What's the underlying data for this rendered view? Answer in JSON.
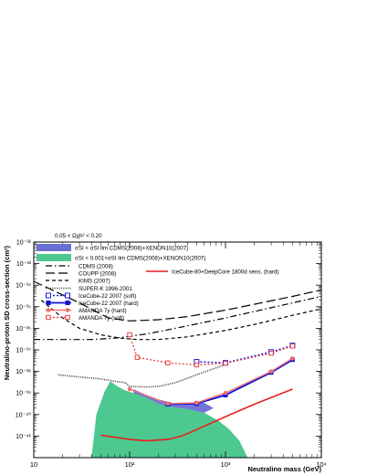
{
  "chart_data": {
    "type": "line",
    "xscale": "log",
    "yscale": "log",
    "xlim": [
      10,
      10000
    ],
    "ylim": [
      1e-42,
      1e-32
    ],
    "xlabel": "Neutralino mass (GeV)",
    "ylabel": "Neutralino-proton SD cross-section (cm²)",
    "x_tick_labels": [
      "10",
      "10²",
      "10³",
      "10⁴"
    ],
    "y_tick_labels": [
      "10⁻⁴¹",
      "10⁻⁴⁰",
      "10⁻³⁹",
      "10⁻³⁸",
      "10⁻³⁷",
      "10⁻³⁶",
      "10⁻³⁵",
      "10⁻³⁴",
      "10⁻³³",
      "10⁻³²"
    ],
    "annotation": "0.05 < Ωχh² < 0.20",
    "grid": false,
    "legend": {
      "top": [
        {
          "label": "σSI < σSI lim CDMS(2008)+XENON10(2007)",
          "color": "#6a6fd6",
          "style": "band"
        },
        {
          "label": "σSI < 0.001×σSI lim CDMS(2008)+XENON10(2007)",
          "color": "#4cc890",
          "style": "band"
        }
      ],
      "lines": [
        {
          "label": "CDMS (2008)",
          "style": "dashdot"
        },
        {
          "label": "COUPP (2008)",
          "style": "longdash"
        },
        {
          "label": "KIMS (2007)",
          "style": "dash"
        },
        {
          "label": "SUPER-K 1996-2001",
          "style": "dotted"
        },
        {
          "label": "IceCube-22 2007 (soft)",
          "style": "dotted-open-square"
        },
        {
          "label": "IceCube-22 2007 (hard)",
          "style": "solid-filled-square"
        },
        {
          "label": "AMANDA 7y (hard)",
          "style": "solid-filled-circle"
        },
        {
          "label": "AMANDA 7y (soft)",
          "style": "dotted-open-circle"
        }
      ],
      "right": {
        "label": "IceCube-80+DeepCore 1800d sens. (hard)",
        "color": "#e8201c"
      }
    },
    "regions": [
      {
        "name": "σSI < 0.001×σSI lim",
        "color": "#4cc890",
        "upper": [
          [
            40,
            1e-42
          ],
          [
            45,
            1e-40
          ],
          [
            55,
            1.2e-39
          ],
          [
            63,
            3.5e-39
          ],
          [
            75,
            2e-39
          ],
          [
            90,
            1.3e-39
          ],
          [
            110,
            1e-39
          ],
          [
            150,
            6e-40
          ],
          [
            200,
            3.2e-40
          ],
          [
            280,
            2.2e-40
          ],
          [
            400,
            1.8e-40
          ],
          [
            600,
            1.2e-40
          ],
          [
            850,
            5e-41
          ],
          [
            1100,
            2e-41
          ],
          [
            1400,
            6e-42
          ],
          [
            1700,
            1e-42
          ]
        ]
      },
      {
        "name": "σSI < σSI lim",
        "color": "#6a6fd6",
        "upper": [
          [
            110,
            1.5e-39
          ],
          [
            150,
            8e-40
          ],
          [
            200,
            5e-40
          ],
          [
            280,
            3.5e-40
          ],
          [
            400,
            3.5e-40
          ],
          [
            500,
            3.5e-40
          ],
          [
            600,
            3.5e-40
          ],
          [
            750,
            2e-40
          ]
        ],
        "lower": [
          [
            750,
            2e-40
          ],
          [
            600,
            1.2e-40
          ],
          [
            400,
            1.8e-40
          ],
          [
            280,
            2.2e-40
          ],
          [
            200,
            3.2e-40
          ],
          [
            150,
            6e-40
          ],
          [
            110,
            1e-39
          ]
        ]
      }
    ],
    "series": [
      {
        "name": "CDMS (2008)",
        "x": [
          10,
          40,
          70,
          100,
          150,
          200,
          300,
          500,
          1000,
          2000,
          5000,
          10000
        ],
        "y": [
          3e-37,
          3e-37,
          3.5e-37,
          4.2e-37,
          5.5e-37,
          7e-37,
          1e-36,
          1.6e-36,
          3e-36,
          6e-36,
          1.5e-35,
          3e-35
        ]
      },
      {
        "name": "COUPP (2008)",
        "x": [
          10,
          30,
          60,
          100,
          200,
          400,
          1000,
          2000,
          5000,
          10000
        ],
        "y": [
          1.5e-34,
          1.5e-35,
          3e-36,
          2.2e-36,
          2.5e-36,
          3.5e-36,
          7e-36,
          1.3e-35,
          3e-35,
          6e-35
        ]
      },
      {
        "name": "KIMS (2007)",
        "x": [
          12,
          20,
          30,
          50,
          80,
          120,
          200,
          400,
          1000,
          2000,
          5000,
          10000
        ],
        "y": [
          2e-35,
          3e-36,
          1e-36,
          5e-37,
          3.5e-37,
          3e-37,
          3e-37,
          4e-37,
          8e-37,
          1.5e-36,
          4e-36,
          8e-36
        ]
      },
      {
        "name": "SUPER-K 1996-2001",
        "x": [
          18,
          30,
          50,
          70,
          90,
          100,
          150,
          200,
          300,
          500,
          1000
        ],
        "y": [
          7e-39,
          5.5e-39,
          4.5e-39,
          3.5e-39,
          3e-39,
          2e-39,
          1.9e-39,
          2e-39,
          3e-39,
          7e-39,
          2.1e-38
        ]
      },
      {
        "name": "IceCube-22 2007 (soft)",
        "x": [
          500,
          1000,
          3000,
          5000
        ],
        "y": [
          2.8e-38,
          2.5e-38,
          8e-38,
          1.6e-37
        ]
      },
      {
        "name": "IceCube-22 2007 (hard)",
        "x": [
          250,
          500,
          1000,
          3000,
          5000
        ],
        "y": [
          3e-40,
          3.2e-40,
          8e-40,
          9e-39,
          3.5e-38
        ]
      },
      {
        "name": "AMANDA 7y (hard)",
        "x": [
          100,
          250,
          500,
          1000,
          3000,
          5000
        ],
        "y": [
          1.5e-39,
          3.2e-40,
          3.5e-40,
          1e-39,
          1e-38,
          4e-38
        ]
      },
      {
        "name": "AMANDA 7y (soft)",
        "x": [
          100,
          120,
          250,
          500,
          1000,
          3000,
          5000
        ],
        "y": [
          5e-37,
          4.5e-38,
          2.5e-38,
          2e-38,
          2.4e-38,
          7e-38,
          1.5e-37
        ]
      },
      {
        "name": "IceCube-80+DeepCore 1800d sens. (hard)",
        "x": [
          50,
          100,
          150,
          250,
          350,
          500,
          1000,
          2000,
          5000
        ],
        "y": [
          1.1e-41,
          7e-42,
          6e-42,
          7e-42,
          1e-41,
          2e-41,
          8e-41,
          3e-40,
          1.5e-39
        ]
      }
    ]
  }
}
